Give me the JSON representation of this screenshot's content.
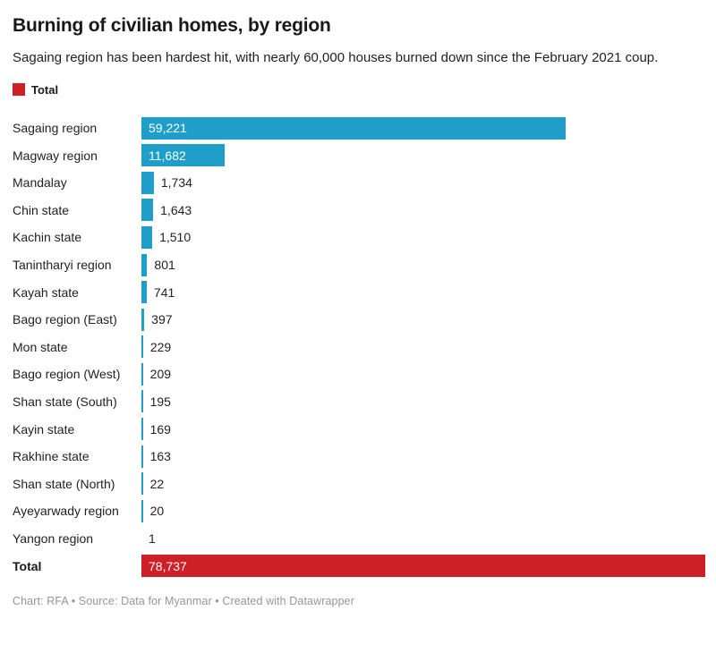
{
  "header": {
    "title": "Burning of civilian homes, by region",
    "subtitle": "Sagaing region has been hardest hit, with nearly 60,000 houses burned down since the February 2021 coup."
  },
  "legend": {
    "label": "Total",
    "color": "#cd2026"
  },
  "footer": {
    "text": "Chart: RFA • Source: Data for Myanmar • Created with Datawrapper"
  },
  "chart_data": {
    "type": "bar",
    "orientation": "horizontal",
    "title": "Burning of civilian homes, by region",
    "subtitle": "Sagaing region has been hardest hit, with nearly 60,000 houses burned down since the February 2021 coup.",
    "categories": [
      "Sagaing region",
      "Magway region",
      "Mandalay",
      "Chin state",
      "Kachin state",
      "Tanintharyi region",
      "Kayah state",
      "Bago region (East)",
      "Mon state",
      "Bago region (West)",
      "Shan state (South)",
      "Kayin state",
      "Rakhine state",
      "Shan state (North)",
      "Ayeyarwady region",
      "Yangon region"
    ],
    "values": [
      59221,
      11682,
      1734,
      1643,
      1510,
      801,
      741,
      397,
      229,
      209,
      195,
      169,
      163,
      22,
      20,
      1
    ],
    "value_labels": [
      "59,221",
      "11,682",
      "1,734",
      "1,643",
      "1,510",
      "801",
      "741",
      "397",
      "229",
      "209",
      "195",
      "169",
      "163",
      "22",
      "20",
      "1"
    ],
    "total_row": {
      "label": "Total",
      "value": 78737,
      "value_label": "78,737"
    },
    "bar_color": "#1e9ec9",
    "total_color": "#cd2026",
    "xlim": [
      0,
      78737
    ],
    "grid": false,
    "legend_position": "top-left",
    "legend_entries": [
      {
        "label": "Total",
        "color": "#cd2026"
      }
    ]
  }
}
